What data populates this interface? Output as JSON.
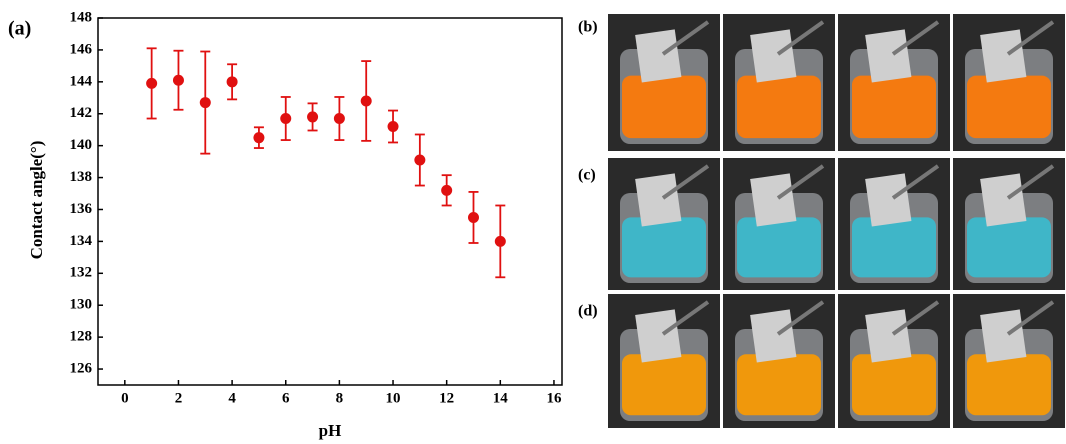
{
  "chart_data": {
    "type": "scatter",
    "panel_label": "(a)",
    "x_label": "pH",
    "y_label": "Contact angle(°)",
    "x": [
      1,
      2,
      3,
      4,
      5,
      6,
      7,
      8,
      9,
      10,
      11,
      12,
      13,
      14
    ],
    "series": [
      {
        "color": "#e01010",
        "values": [
          143.9,
          144.1,
          142.7,
          144.0,
          140.5,
          141.7,
          141.8,
          141.7,
          142.8,
          141.2,
          139.1,
          137.2,
          135.5,
          134.0
        ],
        "errors": [
          2.2,
          1.85,
          3.2,
          1.1,
          0.65,
          1.35,
          0.85,
          1.35,
          2.5,
          1.0,
          1.6,
          0.95,
          1.6,
          2.25
        ]
      }
    ],
    "xlim": [
      -1,
      16.3
    ],
    "ylim": [
      125,
      148
    ],
    "xticks": [
      0,
      2,
      4,
      6,
      8,
      10,
      12,
      14,
      16
    ],
    "yticks": [
      126,
      128,
      130,
      132,
      134,
      136,
      138,
      140,
      142,
      144,
      146,
      148
    ]
  },
  "photos": {
    "labels": [
      "(b)",
      "(c)",
      "(d)"
    ]
  }
}
